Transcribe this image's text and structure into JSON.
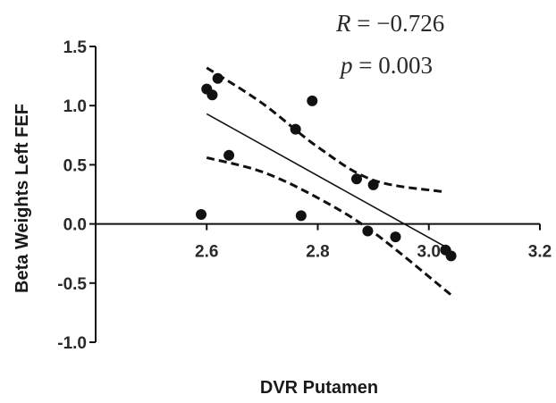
{
  "chart_data": {
    "type": "scatter",
    "xlabel": "DVR Putamen",
    "ylabel": "Beta Weights Left FEF",
    "xlim": [
      2.4,
      3.2
    ],
    "ylim": [
      -1.0,
      1.5
    ],
    "x_ticks": [
      {
        "value": 2.6,
        "label": "2.6"
      },
      {
        "value": 2.8,
        "label": "2.8"
      },
      {
        "value": 3.0,
        "label": "3.0"
      },
      {
        "value": 3.2,
        "label": "3.2"
      }
    ],
    "y_ticks": [
      {
        "value": 1.5,
        "label": "1.5"
      },
      {
        "value": 1.0,
        "label": "1.0"
      },
      {
        "value": 0.5,
        "label": "0.5"
      },
      {
        "value": 0.0,
        "label": "0.0"
      },
      {
        "value": -0.5,
        "label": "-0.5"
      },
      {
        "value": -1.0,
        "label": "-1.0"
      }
    ],
    "points": [
      {
        "x": 2.59,
        "y": 0.08
      },
      {
        "x": 2.6,
        "y": 1.14
      },
      {
        "x": 2.61,
        "y": 1.09
      },
      {
        "x": 2.62,
        "y": 1.23
      },
      {
        "x": 2.64,
        "y": 0.58
      },
      {
        "x": 2.76,
        "y": 0.8
      },
      {
        "x": 2.77,
        "y": 0.07
      },
      {
        "x": 2.79,
        "y": 1.04
      },
      {
        "x": 2.87,
        "y": 0.38
      },
      {
        "x": 2.89,
        "y": -0.06
      },
      {
        "x": 2.9,
        "y": 0.33
      },
      {
        "x": 2.94,
        "y": -0.11
      },
      {
        "x": 3.03,
        "y": -0.22
      },
      {
        "x": 3.04,
        "y": -0.27
      }
    ],
    "regression": {
      "x": [
        2.6,
        3.04
      ],
      "y": [
        0.93,
        -0.22
      ]
    },
    "ci_upper": {
      "x": [
        2.6,
        2.7,
        2.8,
        2.9,
        3.03
      ],
      "y": [
        1.32,
        1.02,
        0.65,
        0.37,
        0.27
      ]
    },
    "ci_lower": {
      "x": [
        2.6,
        2.7,
        2.8,
        2.9,
        3.04
      ],
      "y": [
        0.56,
        0.44,
        0.22,
        -0.07,
        -0.6
      ]
    },
    "annotations": {
      "r_var": "R",
      "r_rest": " = −0.726",
      "p_var": "p",
      "p_rest": " = 0.003"
    },
    "grid": false,
    "marker_color": "#111111",
    "line_color": "#111111"
  }
}
